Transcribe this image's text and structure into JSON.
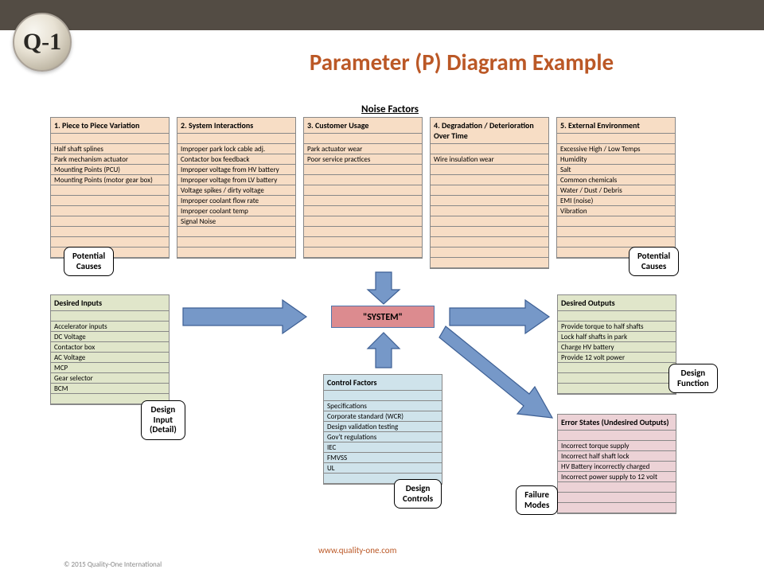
{
  "logo_text": "Q-1",
  "title": "Parameter (P) Diagram Example",
  "noise_title": "Noise Factors",
  "url": "www.quality-one.com",
  "copyright": "© 2015 Quality-One International",
  "system_label": "\"SYSTEM\"",
  "noise": [
    {
      "hdr": "1. Piece to Piece Variation",
      "rows": [
        "",
        "Half shaft splines",
        "Park mechanism actuator",
        "Mounting Points (PCU)",
        "Mounting Points (motor gear box)",
        "",
        "",
        "",
        "",
        "",
        "",
        ""
      ]
    },
    {
      "hdr": "2. System Interactions",
      "rows": [
        "",
        "Improper park lock cable adj.",
        "Contactor box feedback",
        "Improper voltage from HV battery",
        "Improper voltage from LV battery",
        "Voltage spikes / dirty voltage",
        "Improper coolant flow rate",
        "Improper coolant temp",
        "Signal Noise",
        "",
        "",
        ""
      ]
    },
    {
      "hdr": "3. Customer Usage",
      "rows": [
        "",
        "Park actuator wear",
        "Poor service practices",
        "",
        "",
        "",
        "",
        "",
        "",
        "",
        "",
        ""
      ]
    },
    {
      "hdr": "4. Degradation / Deterioration Over Time",
      "rows": [
        "",
        "Wire insulation wear",
        "",
        "",
        "",
        "",
        "",
        "",
        "",
        "",
        "",
        ""
      ]
    },
    {
      "hdr": "5. External Environment",
      "rows": [
        "",
        "Excessive High / Low Temps",
        "Humidity",
        "Salt",
        "Common chemicals",
        "Water / Dust / Debris",
        "EMI (noise)",
        "Vibration",
        "",
        "",
        "",
        ""
      ]
    }
  ],
  "inputs": {
    "hdr": "Desired Inputs",
    "rows": [
      "",
      "Accelerator inputs",
      "DC Voltage",
      "Contactor box",
      "AC Voltage",
      "MCP",
      "Gear selector",
      "BCM",
      ""
    ]
  },
  "controls": {
    "hdr": "Control Factors",
    "rows": [
      "",
      "Specifications",
      "Corporate standard (WCR)",
      "Design validation testing",
      "Gov't regulations",
      "IEC",
      "FMVSS",
      "UL",
      ""
    ]
  },
  "outputs": {
    "hdr": "Desired Outputs",
    "rows": [
      "",
      "Provide torque to half shafts",
      "Lock half shafts in park",
      "Charge HV battery",
      "Provide 12 volt power",
      "",
      "",
      ""
    ]
  },
  "errors": {
    "hdr": "Error States (Undesired Outputs)",
    "rows": [
      "",
      "Incorrect torque supply",
      "Incorrect half shaft lock",
      "HV Battery incorrectly charged",
      "Incorrect power supply to 12 volt",
      "",
      "",
      ""
    ]
  },
  "callouts": {
    "pc_left": "Potential\nCauses",
    "pc_right": "Potential\nCauses",
    "design_input": "Design\nInput\n(Detail)",
    "design_controls": "Design\nControls",
    "design_function": "Design\nFunction",
    "failure_modes": "Failure\nModes"
  },
  "colors": {
    "topbar": "#534c44",
    "title_color": "#bb5826",
    "noise_bg": "#f7ddc5",
    "inputs_bg": "#e0e6ca",
    "control_bg": "#cfe3eb",
    "errors_bg": "#ecd2d6",
    "system_bg": "#dc8b8f",
    "arrow_fill": "#7698c8",
    "arrow_stroke": "#3d5f94"
  }
}
